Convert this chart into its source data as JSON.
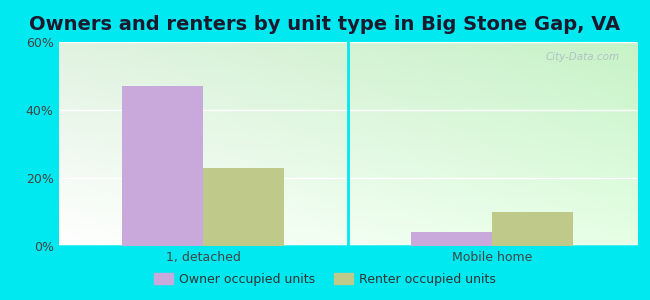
{
  "title": "Owners and renters by unit type in Big Stone Gap, VA",
  "categories": [
    "1, detached",
    "Mobile home"
  ],
  "owner_values": [
    47,
    4
  ],
  "renter_values": [
    23,
    10
  ],
  "owner_color": "#c9a8dc",
  "renter_color": "#bec98a",
  "owner_label": "Owner occupied units",
  "renter_label": "Renter occupied units",
  "ylim": [
    0,
    60
  ],
  "yticks": [
    0,
    20,
    40,
    60
  ],
  "ytick_labels": [
    "0%",
    "20%",
    "40%",
    "60%"
  ],
  "background_color": "#00e8f0",
  "title_fontsize": 14,
  "bar_width": 0.28,
  "watermark": "City-Data.com"
}
